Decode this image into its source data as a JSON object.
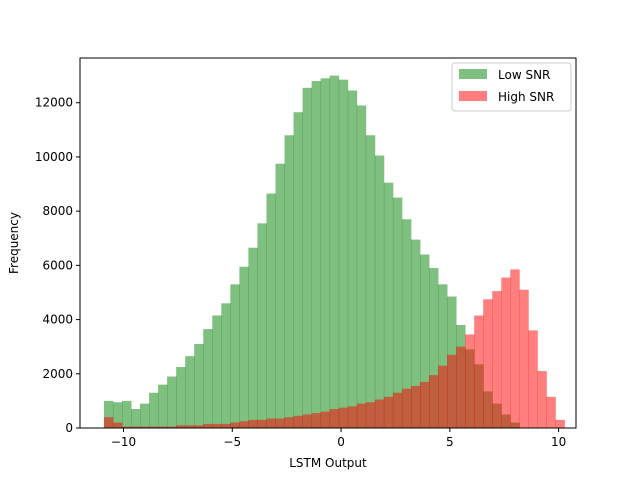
{
  "chart_data": {
    "type": "bar",
    "title": "",
    "xlabel": "LSTM Output",
    "ylabel": "Frequency",
    "xlim": [
      -12,
      10.8
    ],
    "ylim": [
      0,
      13650
    ],
    "xticks": [
      -10,
      -5,
      0,
      5,
      10
    ],
    "yticks": [
      0,
      2000,
      4000,
      6000,
      8000,
      10000,
      12000
    ],
    "xtick_labels": [
      "−10",
      "−5",
      "0",
      "5",
      "10"
    ],
    "ytick_labels": [
      "0",
      "2000",
      "4000",
      "6000",
      "8000",
      "10000",
      "12000"
    ],
    "legend_position": "top-right",
    "grid": false,
    "bin_start": -10.9,
    "bin_width": 0.4151,
    "series": [
      {
        "name": "Low SNR",
        "color": "#008000",
        "alpha": 0.5,
        "values": [
          1000,
          950,
          1000,
          700,
          900,
          1300,
          1600,
          1900,
          2250,
          2650,
          3100,
          3650,
          4150,
          4600,
          5300,
          5950,
          6650,
          7550,
          8650,
          9750,
          10800,
          11650,
          12550,
          12800,
          12900,
          13000,
          12850,
          12450,
          11900,
          10800,
          10050,
          9050,
          8500,
          7700,
          6950,
          6400,
          5900,
          5300,
          4850,
          3800,
          2900,
          2350,
          1350,
          900,
          500,
          200,
          0,
          0,
          0,
          0,
          0
        ]
      },
      {
        "name": "High SNR",
        "color": "#ff0000",
        "alpha": 0.5,
        "values": [
          400,
          200,
          50,
          50,
          50,
          50,
          50,
          50,
          100,
          100,
          100,
          150,
          150,
          150,
          200,
          250,
          300,
          300,
          350,
          350,
          400,
          450,
          500,
          550,
          600,
          700,
          750,
          800,
          900,
          950,
          1050,
          1150,
          1300,
          1450,
          1550,
          1700,
          1950,
          2300,
          2700,
          3000,
          3450,
          4150,
          4750,
          5050,
          5550,
          5850,
          5100,
          3600,
          2100,
          1150,
          300
        ]
      }
    ]
  }
}
